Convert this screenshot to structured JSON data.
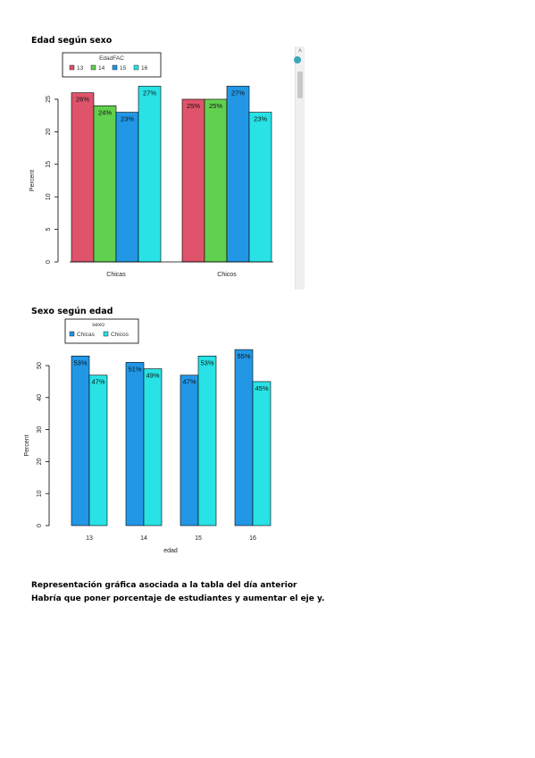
{
  "headings": {
    "chart1": "Edad según sexo",
    "chart2": "Sexo según edad"
  },
  "notes": {
    "line1": "Representación gráfica asociada a la tabla del día anterior",
    "line2": "Habría que poner porcentaje de estudiantes y aumentar el eje y."
  },
  "scrollbar": {
    "arrow_glyph": "˄"
  },
  "chart_data": [
    {
      "type": "bar",
      "title": "",
      "xlabel": "",
      "ylabel": "Percent",
      "categories": [
        "Chicas",
        "Chicos"
      ],
      "ylim": [
        0,
        25
      ],
      "yticks": [
        0,
        5,
        10,
        15,
        20,
        25
      ],
      "legend": {
        "title": "EdadFAC",
        "placement": "top-left",
        "labels": [
          "13",
          "14",
          "15",
          "16"
        ]
      },
      "series": [
        {
          "name": "13",
          "color": "#df536b",
          "values": [
            26,
            25
          ],
          "labels": [
            "26%",
            "25%"
          ]
        },
        {
          "name": "14",
          "color": "#61d04f",
          "values": [
            24,
            25
          ],
          "labels": [
            "24%",
            "25%"
          ]
        },
        {
          "name": "15",
          "color": "#2297e6",
          "values": [
            23,
            27
          ],
          "labels": [
            "23%",
            "27%"
          ]
        },
        {
          "name": "16",
          "color": "#28e2e5",
          "values": [
            27,
            23
          ],
          "labels": [
            "27%",
            "23%"
          ]
        }
      ],
      "grid": false
    },
    {
      "type": "bar",
      "title": "",
      "xlabel": "edad",
      "ylabel": "Percent",
      "categories": [
        "13",
        "14",
        "15",
        "16"
      ],
      "ylim": [
        0,
        50
      ],
      "yticks": [
        0,
        10,
        20,
        30,
        40,
        50
      ],
      "legend": {
        "title": "sexo",
        "placement": "top-left",
        "labels": [
          "Chicas",
          "Chicos"
        ]
      },
      "series": [
        {
          "name": "Chicas",
          "color": "#2297e6",
          "values": [
            53,
            51,
            47,
            55
          ],
          "labels": [
            "53%",
            "51%",
            "47%",
            "55%"
          ]
        },
        {
          "name": "Chicos",
          "color": "#28e2e5",
          "values": [
            47,
            49,
            53,
            45
          ],
          "labels": [
            "47%",
            "49%",
            "53%",
            "45%"
          ]
        }
      ],
      "grid": false
    }
  ]
}
